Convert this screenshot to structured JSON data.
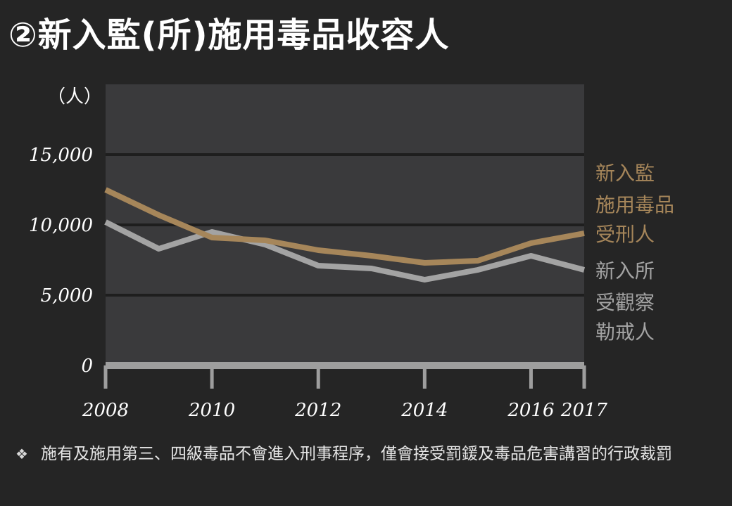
{
  "title": "②新入監(所)施用毒品收容人",
  "note": {
    "bullet_icon": "diamond-bullet-icon",
    "text": "施有及施用第三、四級毒品不會進入刑事程序，僅會接受罰鍰及毒品危害講習的行政裁罰"
  },
  "colors": {
    "background": "#252525",
    "plot_background": "#3a3a3c",
    "gridline": "#1e1e1e",
    "series_prison": "#a6865a",
    "series_institution": "#a3a3a3",
    "x_axis": "#9e9e9e"
  },
  "chart_data": {
    "type": "line",
    "ylabel": "（人）",
    "ylim": [
      0,
      20000
    ],
    "yticks": [
      0,
      5000,
      10000,
      15000
    ],
    "ytick_labels": [
      "0",
      "5,000",
      "10,000",
      "15,000"
    ],
    "xticks": [
      2008,
      2010,
      2012,
      2014,
      2016,
      2017
    ],
    "xtick_labels": [
      "2008",
      "2010",
      "2012",
      "2014",
      "2016",
      "2017"
    ],
    "x": [
      2008,
      2009,
      2010,
      2011,
      2012,
      2013,
      2014,
      2015,
      2016,
      2017
    ],
    "grid": true,
    "legend_position": "right",
    "series": [
      {
        "name": "新入監施用毒品受刑人",
        "legend_lines": [
          "新入監",
          "施用毒品",
          "受刑人"
        ],
        "color": "#a6865a",
        "values": [
          12500,
          10700,
          9100,
          8900,
          8200,
          7800,
          7300,
          7450,
          8700,
          9400
        ]
      },
      {
        "name": "新入所受觀察勒戒人",
        "legend_lines": [
          "新入所",
          "受觀察",
          "勒戒人"
        ],
        "color": "#a3a3a3",
        "values": [
          10200,
          8300,
          9500,
          8600,
          7100,
          6900,
          6100,
          6800,
          7800,
          6800
        ]
      }
    ]
  }
}
